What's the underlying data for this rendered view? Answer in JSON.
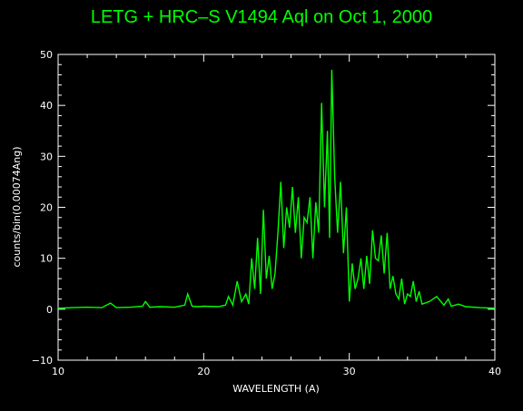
{
  "chart_data": {
    "type": "line",
    "title": "LETG + HRC–S V1494 Aql on Oct 1, 2000",
    "xlabel": "WAVELENGTH (A)",
    "ylabel": "counts/bin(0.00074Ang)",
    "xlim": [
      10,
      40
    ],
    "ylim": [
      -10,
      50
    ],
    "x_ticks": [
      "10",
      "20",
      "30",
      "40"
    ],
    "y_ticks": [
      "−10",
      "0",
      "10",
      "20",
      "30",
      "40",
      "50"
    ],
    "grid": false,
    "series": [
      {
        "color": "#00ff00",
        "x": [
          10.0,
          11.0,
          12.0,
          13.0,
          13.6,
          14.0,
          15.0,
          15.8,
          16.0,
          16.3,
          17.0,
          18.0,
          18.7,
          18.9,
          19.2,
          19.6,
          20.0,
          21.0,
          21.5,
          21.7,
          22.0,
          22.3,
          22.6,
          22.9,
          23.1,
          23.3,
          23.5,
          23.7,
          23.9,
          24.1,
          24.3,
          24.5,
          24.7,
          24.9,
          25.1,
          25.3,
          25.5,
          25.7,
          25.9,
          26.1,
          26.3,
          26.5,
          26.7,
          26.9,
          27.1,
          27.3,
          27.5,
          27.7,
          27.9,
          28.1,
          28.3,
          28.5,
          28.65,
          28.8,
          29.0,
          29.2,
          29.4,
          29.6,
          29.8,
          30.0,
          30.2,
          30.4,
          30.6,
          30.8,
          31.0,
          31.2,
          31.4,
          31.6,
          31.8,
          32.0,
          32.2,
          32.4,
          32.6,
          32.8,
          33.0,
          33.2,
          33.4,
          33.6,
          33.8,
          34.0,
          34.2,
          34.4,
          34.6,
          34.8,
          35.0,
          35.5,
          36.0,
          36.5,
          36.8,
          37.0,
          37.5,
          38.0,
          39.0,
          40.0
        ],
        "y": [
          0.2,
          0.3,
          0.4,
          0.3,
          1.2,
          0.3,
          0.4,
          0.6,
          1.5,
          0.4,
          0.5,
          0.4,
          0.8,
          3.0,
          0.6,
          0.5,
          0.6,
          0.5,
          0.8,
          2.5,
          0.8,
          5.5,
          1.5,
          3.0,
          1.0,
          10.0,
          4.0,
          14.0,
          3.0,
          19.5,
          6.0,
          10.5,
          4.0,
          7.0,
          15.0,
          25.0,
          12.0,
          20.0,
          16.0,
          24.0,
          15.0,
          22.0,
          10.0,
          18.0,
          17.0,
          22.0,
          10.0,
          21.0,
          15.0,
          40.5,
          20.0,
          35.0,
          14.0,
          47.0,
          26.0,
          15.0,
          25.0,
          11.0,
          20.0,
          1.5,
          9.0,
          4.0,
          6.0,
          10.0,
          4.0,
          10.5,
          5.0,
          15.5,
          10.0,
          9.5,
          14.5,
          7.0,
          15.0,
          4.0,
          6.5,
          3.0,
          2.0,
          6.0,
          1.0,
          3.0,
          2.5,
          5.5,
          1.5,
          3.5,
          1.0,
          1.5,
          2.5,
          0.8,
          2.0,
          0.6,
          1.0,
          0.5,
          0.3,
          0.2
        ]
      }
    ]
  }
}
